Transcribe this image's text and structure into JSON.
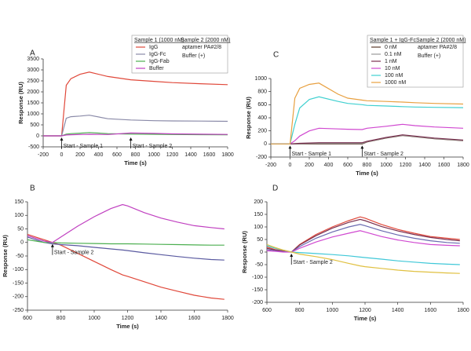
{
  "chart_data": [
    {
      "type": "line",
      "title": "A",
      "x_label": "Time (s)",
      "y_label": "Response (RU)",
      "legend_title": "Sample 1 (1000 nM)",
      "sample2_title": "Sample 2 (2000 nM)",
      "sample2_items": [
        "aptamer PA#2/8",
        "Buffer (+)"
      ],
      "x": [
        -200,
        0,
        50,
        100,
        200,
        300,
        500,
        750,
        1000,
        1200,
        1500,
        1800
      ],
      "series": [
        {
          "name": "IgG",
          "color": "#e0483a",
          "values": [
            0,
            0,
            2300,
            2600,
            2800,
            2900,
            2700,
            2550,
            2480,
            2420,
            2370,
            2330
          ]
        },
        {
          "name": "IgG-Fc",
          "color": "#8a8aa8",
          "values": [
            0,
            0,
            800,
            870,
            900,
            940,
            780,
            720,
            690,
            680,
            670,
            660
          ]
        },
        {
          "name": "IgG-Fab",
          "color": "#4caf50",
          "values": [
            0,
            0,
            80,
            100,
            120,
            150,
            100,
            80,
            70,
            60,
            55,
            50
          ]
        },
        {
          "name": "Buffer",
          "color": "#c040c0",
          "values": [
            0,
            0,
            40,
            50,
            60,
            70,
            60,
            130,
            110,
            90,
            75,
            65
          ]
        }
      ],
      "annotations": [
        {
          "text": "Start - Sample 1",
          "x": 0
        },
        {
          "text": "Start - Sample 2",
          "x": 750
        }
      ],
      "xlim": [
        -200,
        1800
      ],
      "xticks": [
        -200,
        0,
        200,
        400,
        600,
        800,
        1000,
        1200,
        1400,
        1600,
        1800
      ],
      "ylim": [
        -500,
        3500
      ],
      "yticks": [
        -500,
        0,
        500,
        1000,
        1500,
        2000,
        2500,
        3000,
        3500
      ]
    },
    {
      "type": "line",
      "title": "B",
      "x_label": "Time (s)",
      "y_label": "Response (RU)",
      "x": [
        600,
        650,
        700,
        750,
        800,
        900,
        1000,
        1100,
        1170,
        1200,
        1300,
        1400,
        1500,
        1600,
        1700,
        1780
      ],
      "series": [
        {
          "color": "#e0483a",
          "values": [
            30,
            20,
            10,
            0,
            -10,
            -40,
            -70,
            -100,
            -120,
            -125,
            -145,
            -165,
            -180,
            -195,
            -205,
            -210
          ]
        },
        {
          "color": "#5a5aa0",
          "values": [
            20,
            10,
            0,
            -5,
            -8,
            -12,
            -18,
            -24,
            -28,
            -30,
            -38,
            -45,
            -52,
            -58,
            -63,
            -65
          ]
        },
        {
          "color": "#4caf50",
          "values": [
            10,
            5,
            0,
            0,
            -2,
            -3,
            -4,
            -5,
            -5,
            -5,
            -6,
            -7,
            -8,
            -9,
            -10,
            -10
          ]
        },
        {
          "color": "#c040c0",
          "values": [
            25,
            15,
            5,
            0,
            20,
            60,
            95,
            125,
            140,
            135,
            110,
            90,
            75,
            62,
            55,
            50
          ]
        }
      ],
      "annotations": [
        {
          "text": "Start - Sample 2",
          "x": 750
        }
      ],
      "xlim": [
        600,
        1800
      ],
      "xticks": [
        600,
        800,
        1000,
        1200,
        1400,
        1600,
        1800
      ],
      "ylim": [
        -250,
        150
      ],
      "yticks": [
        -250,
        -200,
        -150,
        -100,
        -50,
        0,
        50,
        100,
        150
      ]
    },
    {
      "type": "line",
      "title": "C",
      "x_label": "Time (s)",
      "y_label": "Response (RU)",
      "legend_title": "Sample 1 + IgG-Fc",
      "sample2_title": "Sample 2 (2000 nM)",
      "sample2_items": [
        "aptamer PA#2/8",
        "Buffer (+)"
      ],
      "x": [
        -200,
        0,
        50,
        100,
        200,
        300,
        500,
        600,
        750,
        800,
        1000,
        1170,
        1300,
        1500,
        1800
      ],
      "series": [
        {
          "name": "0 nM",
          "color": "#5a3a2a",
          "values": [
            0,
            0,
            0,
            0,
            0,
            0,
            0,
            0,
            0,
            30,
            90,
            130,
            110,
            80,
            50
          ]
        },
        {
          "name": "0.1 nM",
          "color": "#9a9a9a",
          "values": [
            0,
            0,
            2,
            5,
            8,
            10,
            10,
            10,
            10,
            35,
            95,
            135,
            115,
            85,
            55
          ]
        },
        {
          "name": "1 nM",
          "color": "#7a3050",
          "values": [
            0,
            0,
            5,
            10,
            15,
            20,
            20,
            20,
            20,
            40,
            100,
            140,
            120,
            90,
            60
          ]
        },
        {
          "name": "10 nM",
          "color": "#d048d0",
          "values": [
            0,
            0,
            50,
            120,
            200,
            240,
            230,
            225,
            220,
            240,
            270,
            300,
            280,
            260,
            240
          ]
        },
        {
          "name": "100 nM",
          "color": "#40d0d0",
          "values": [
            0,
            0,
            300,
            550,
            680,
            720,
            650,
            620,
            600,
            590,
            580,
            570,
            565,
            560,
            555
          ]
        },
        {
          "name": "1000 nM",
          "color": "#e8a040",
          "values": [
            0,
            0,
            700,
            850,
            910,
            930,
            760,
            700,
            670,
            660,
            650,
            640,
            630,
            620,
            610
          ]
        }
      ],
      "annotations": [
        {
          "text": "Start - Sample 1",
          "x": 0
        },
        {
          "text": "Start - Sample 2",
          "x": 750
        }
      ],
      "xlim": [
        -200,
        1800
      ],
      "xticks": [
        -200,
        0,
        200,
        400,
        600,
        800,
        1000,
        1200,
        1400,
        1600,
        1800
      ],
      "ylim": [
        -200,
        1000
      ],
      "yticks": [
        -200,
        0,
        200,
        400,
        600,
        800,
        1000
      ]
    },
    {
      "type": "line",
      "title": "D",
      "x_label": "Time (s)",
      "y_label": "Response (RU)",
      "x": [
        600,
        650,
        700,
        750,
        800,
        900,
        1000,
        1100,
        1170,
        1200,
        1300,
        1400,
        1500,
        1600,
        1700,
        1780
      ],
      "series": [
        {
          "color": "#e0483a",
          "values": [
            20,
            10,
            5,
            0,
            30,
            70,
            100,
            125,
            140,
            135,
            110,
            90,
            75,
            62,
            55,
            50
          ]
        },
        {
          "color": "#7a3050",
          "values": [
            15,
            8,
            3,
            0,
            28,
            65,
            95,
            118,
            130,
            125,
            102,
            84,
            70,
            58,
            50,
            45
          ]
        },
        {
          "color": "#6a6ab0",
          "values": [
            10,
            5,
            2,
            0,
            22,
            55,
            80,
            100,
            110,
            105,
            85,
            68,
            55,
            45,
            38,
            35
          ]
        },
        {
          "color": "#d048d0",
          "values": [
            5,
            3,
            0,
            0,
            15,
            40,
            60,
            75,
            85,
            80,
            62,
            48,
            38,
            30,
            27,
            25
          ]
        },
        {
          "color": "#40c8d8",
          "values": [
            25,
            15,
            8,
            0,
            -2,
            -6,
            -10,
            -15,
            -20,
            -22,
            -28,
            -35,
            -40,
            -45,
            -48,
            -50
          ]
        },
        {
          "color": "#e0c040",
          "values": [
            30,
            18,
            8,
            0,
            -8,
            -18,
            -30,
            -45,
            -55,
            -58,
            -65,
            -72,
            -77,
            -80,
            -83,
            -85
          ]
        }
      ],
      "annotations": [
        {
          "text": "Start - Sample 2",
          "x": 750
        }
      ],
      "xlim": [
        600,
        1800
      ],
      "xticks": [
        600,
        800,
        1000,
        1200,
        1400,
        1600,
        1800
      ],
      "ylim": [
        -200,
        200
      ],
      "yticks": [
        -200,
        -150,
        -100,
        -50,
        0,
        50,
        100,
        150,
        200
      ]
    }
  ]
}
